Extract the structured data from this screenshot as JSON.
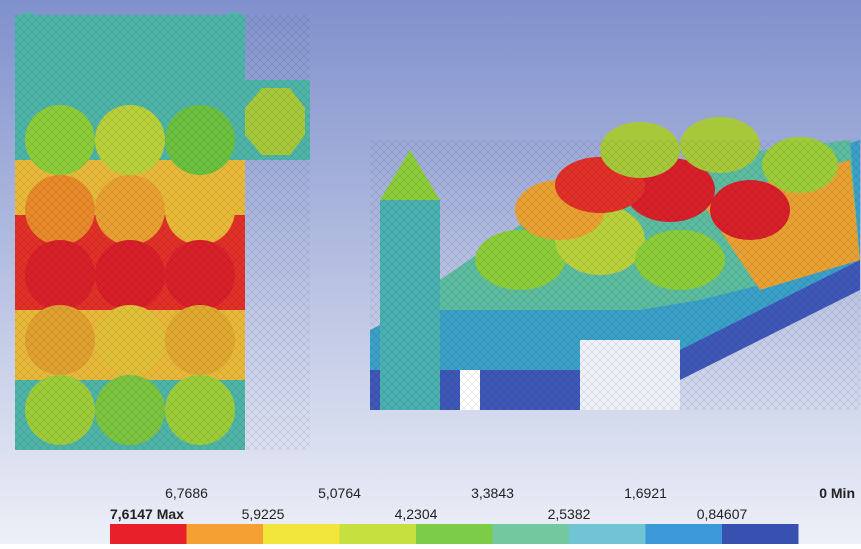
{
  "legend": {
    "labels": [
      "7,6147 Max",
      "6,7686",
      "5,9225",
      "5,0764",
      "4,2304",
      "3,3843",
      "2,5382",
      "1,6921",
      "0,84607",
      "0 Min"
    ],
    "colors": [
      "#e8202a",
      "#f4a032",
      "#f2e63a",
      "#c6e040",
      "#7ccc48",
      "#74c8a0",
      "#70c4d4",
      "#3c98d8",
      "#3850b0"
    ]
  }
}
